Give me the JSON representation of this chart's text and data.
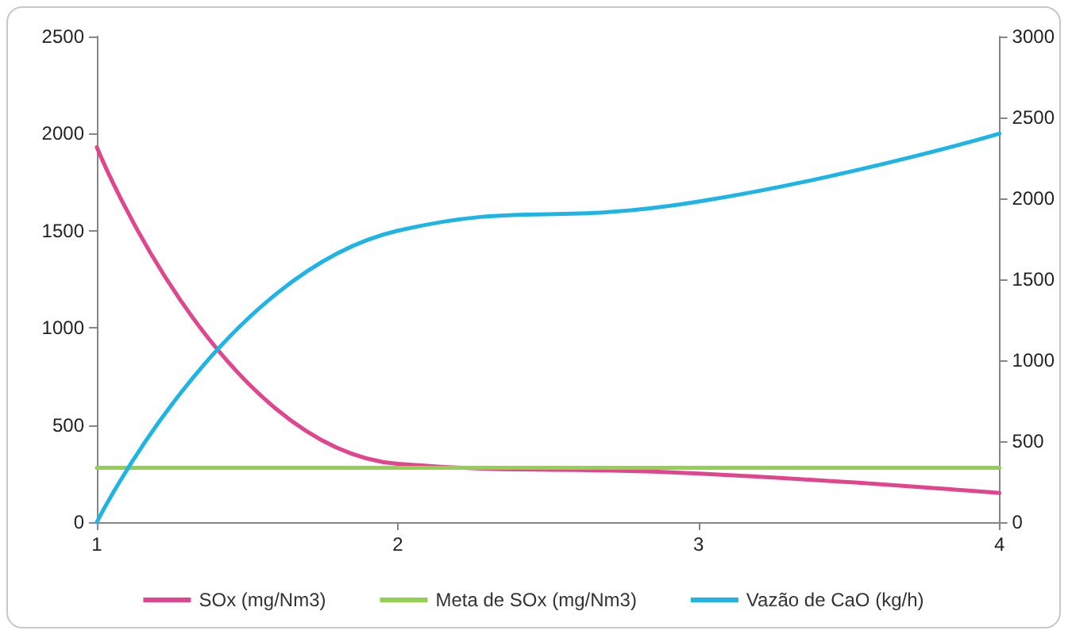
{
  "chart_data": {
    "type": "line",
    "x": [
      1,
      2,
      3,
      4
    ],
    "series": [
      {
        "name": "SOx (mg/Nm3)",
        "color": "#e0458e",
        "values": [
          1930,
          300,
          250,
          150
        ]
      },
      {
        "name": "Meta de SOx (mg/Nm3)",
        "color": "#92d050",
        "values": [
          280,
          280,
          280,
          280
        ]
      },
      {
        "name": "Vazão de CaO (kg/h)",
        "color": "#1eb4e3",
        "values": [
          0,
          1800,
          1980,
          2400
        ],
        "axis": "y2"
      }
    ],
    "xlim": [
      1,
      4
    ],
    "xticks": [
      1,
      2,
      3,
      4
    ],
    "ylim": [
      0,
      2500
    ],
    "yticks": [
      0,
      500,
      1000,
      1500,
      2000,
      2500
    ],
    "y2lim": [
      0,
      3000
    ],
    "y2ticks": [
      0,
      500,
      1000,
      1500,
      2000,
      2500,
      3000
    ],
    "grid": false,
    "legend": "bottom",
    "marker": "none",
    "line_style": "solid"
  }
}
